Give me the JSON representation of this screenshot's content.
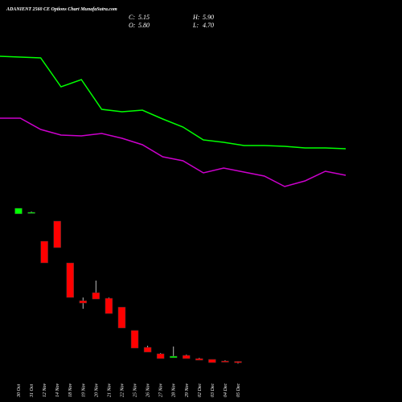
{
  "chart_data": {
    "type": "candlestick",
    "title": "ADANIENT 2560 CE Options Chart MunafaSutra.com",
    "info": [
      {
        "name": "C:",
        "value": "5.15"
      },
      {
        "name": "H:",
        "value": "5.90"
      },
      {
        "name": "O:",
        "value": "5.80"
      },
      {
        "name": "L:",
        "value": "4.70"
      }
    ],
    "categories": [
      "30 Oct",
      "31 Oct",
      "12 Nov",
      "14 Nov",
      "18 Nov",
      "19 Nov",
      "20 Nov",
      "21 Nov",
      "22 Nov",
      "25 Nov",
      "26 Nov",
      "27 Nov",
      "28 Nov",
      "29 Nov",
      "02 Dec",
      "03 Dec",
      "04 Dec",
      "05 Dec"
    ],
    "open": [
      79.2,
      80,
      65.6,
      75.6,
      54.8,
      36,
      40,
      37.2,
      32.8,
      21.2,
      12.8,
      9.6,
      7.6,
      8.8,
      7.2,
      6.8,
      6,
      5.8
    ],
    "high": [
      82,
      80.4,
      65.6,
      75.6,
      54.8,
      37.6,
      46,
      37.6,
      32.8,
      21.2,
      13.6,
      10,
      13.2,
      9.2,
      7.6,
      6.8,
      6.4,
      5.9
    ],
    "low": [
      79.2,
      79.6,
      54.8,
      62.4,
      37.6,
      32,
      36.8,
      29.6,
      22.4,
      12.4,
      10.4,
      7.2,
      7.6,
      7.2,
      6.4,
      5.2,
      5.6,
      4.7
    ],
    "close": [
      82,
      80,
      54.8,
      62.4,
      37.6,
      34.8,
      36.8,
      29.6,
      22.4,
      12.4,
      10.4,
      7.2,
      8.4,
      7.2,
      6.4,
      5.2,
      5.8,
      5.15
    ],
    "up_color": "#00ff00",
    "down_color": "#ff0000",
    "series": [
      {
        "color": "#00ff00",
        "values": [
          157.6,
          157.2,
          156.8,
          142.4,
          146,
          131.2,
          130,
          130.8,
          126.4,
          122.4,
          116,
          114.8,
          113.2,
          113.2,
          112.8,
          112,
          112,
          111.6
        ]
      },
      {
        "color": "#cc00cc",
        "values": [
          126.8,
          126.8,
          121.2,
          118.4,
          118,
          119.2,
          116.8,
          113.6,
          107.6,
          105.6,
          99.6,
          102,
          100,
          98,
          92.8,
          95.6,
          100.4,
          98.4
        ]
      }
    ],
    "ylim": [
      0,
      180
    ]
  }
}
